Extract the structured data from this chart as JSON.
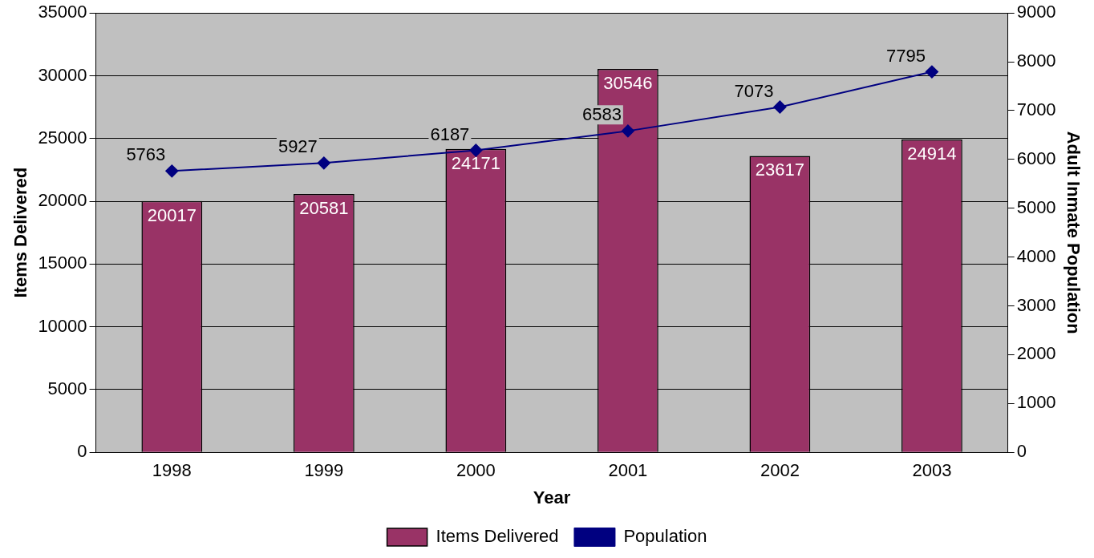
{
  "chart_data": {
    "type": "bar",
    "xlabel": "Year",
    "ylabel": "Items Delivered",
    "y2label": "Adult Inmate Population",
    "categories": [
      "1998",
      "1999",
      "2000",
      "2001",
      "2002",
      "2003"
    ],
    "series": [
      {
        "name": "Items Delivered",
        "color": "#993366",
        "values": [
          20017,
          20581,
          24171,
          30546,
          23617,
          24914
        ]
      },
      {
        "name": "Population",
        "type": "line",
        "axis": "y2",
        "color": "#000080",
        "marker": "diamond",
        "values": [
          5763,
          5927,
          6187,
          6583,
          7073,
          7795
        ]
      }
    ],
    "ylim": [
      0,
      35000
    ],
    "yticks": [
      0,
      5000,
      10000,
      15000,
      20000,
      25000,
      30000,
      35000
    ],
    "y2lim": [
      0,
      9000
    ],
    "y2ticks": [
      0,
      1000,
      2000,
      3000,
      4000,
      5000,
      6000,
      7000,
      8000,
      9000
    ],
    "grid": "y",
    "legend": "bottom",
    "data_labels": true
  }
}
